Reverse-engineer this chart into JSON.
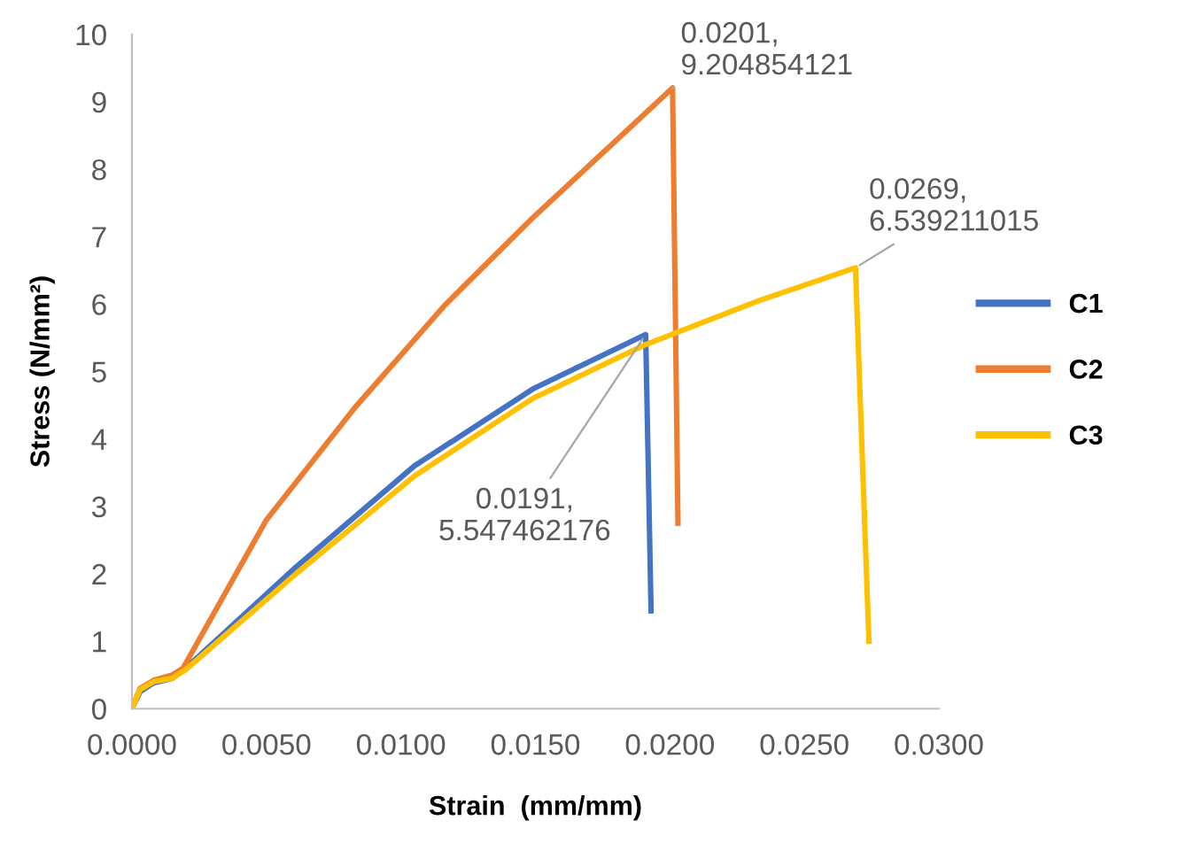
{
  "chart_data": {
    "type": "line",
    "xlabel": "Strain  (mm/mm)",
    "ylabel": "Stress (N/mm²)",
    "xlim": [
      0,
      0.03
    ],
    "ylim": [
      0,
      10
    ],
    "xticks": [
      {
        "value": 0,
        "label": "0.0000"
      },
      {
        "value": 0.005,
        "label": "0.0050"
      },
      {
        "value": 0.01,
        "label": "0.0100"
      },
      {
        "value": 0.015,
        "label": "0.0150"
      },
      {
        "value": 0.02,
        "label": "0.0200"
      },
      {
        "value": 0.025,
        "label": "0.0250"
      },
      {
        "value": 0.03,
        "label": "0.0300"
      }
    ],
    "yticks": [
      0,
      1,
      2,
      3,
      4,
      5,
      6,
      7,
      8,
      9,
      10
    ],
    "grid": false,
    "legend": "right",
    "marker": "none",
    "line_style": "solid",
    "series": [
      {
        "name": "C1",
        "color": "#4472c4",
        "x": [
          0,
          0.0003,
          0.0008,
          0.0015,
          0.002,
          0.0061,
          0.0105,
          0.0149,
          0.0191,
          0.0193
        ],
        "values": [
          0,
          0.25,
          0.38,
          0.45,
          0.6,
          2.1,
          3.6,
          4.74,
          5.547462176,
          1.45
        ]
      },
      {
        "name": "C2",
        "color": "#ed7d31",
        "x": [
          0,
          0.0003,
          0.0008,
          0.0015,
          0.0019,
          0.005,
          0.0083,
          0.0116,
          0.0149,
          0.0182,
          0.0201,
          0.0203
        ],
        "values": [
          0,
          0.3,
          0.42,
          0.5,
          0.6,
          2.8,
          4.47,
          5.97,
          7.28,
          8.5,
          9.204854121,
          2.75
        ]
      },
      {
        "name": "C3",
        "color": "#ffc000",
        "x": [
          0,
          0.0003,
          0.0008,
          0.0015,
          0.002,
          0.0061,
          0.0105,
          0.0149,
          0.0191,
          0.0233,
          0.0269,
          0.0274
        ],
        "values": [
          0,
          0.28,
          0.4,
          0.45,
          0.58,
          2.0,
          3.45,
          4.6,
          5.4,
          6.05,
          6.539211015,
          1.0
        ]
      }
    ],
    "annotations": [
      {
        "text": "0.0201,\n9.204854121",
        "x": 0.0201,
        "y": 9.204854121
      },
      {
        "text": "0.0269,\n6.539211015",
        "x": 0.0269,
        "y": 6.539211015
      },
      {
        "text": "0.0191,\n5.547462176",
        "x": 0.0191,
        "y": 5.547462176
      }
    ]
  }
}
